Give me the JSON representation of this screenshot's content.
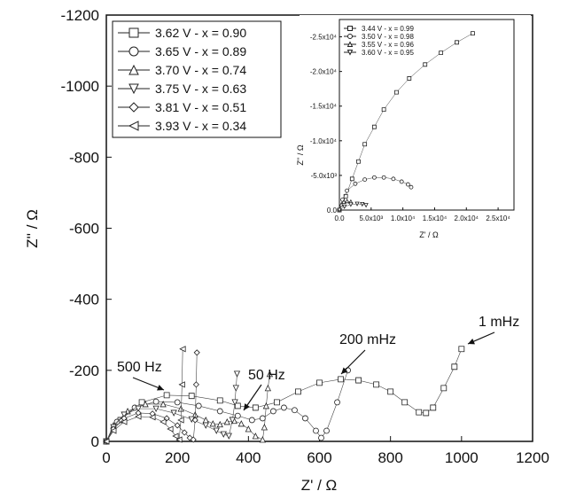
{
  "chart_data": [
    {
      "type": "scatter",
      "xlabel": "Z' / Ω",
      "ylabel": "Z'' / Ω",
      "xlim": [
        0,
        1200
      ],
      "ylim": [
        0,
        -1200
      ],
      "x_ticks": [
        "0",
        "200",
        "400",
        "600",
        "800",
        "1000",
        "1200"
      ],
      "y_ticks": [
        "0",
        "-200",
        "-400",
        "-600",
        "-800",
        "-1000",
        "-1200"
      ],
      "legend_position": "top-left",
      "series": [
        {
          "name": "3.62 V - x = 0.90",
          "marker": "square",
          "x": [
            0,
            40,
            100,
            170,
            240,
            320,
            370,
            420,
            480,
            540,
            600,
            660,
            710,
            760,
            800,
            840,
            880,
            900,
            920,
            950,
            980,
            1000
          ],
          "y": [
            0,
            -60,
            -110,
            -130,
            -128,
            -115,
            -100,
            -95,
            -110,
            -140,
            -165,
            -175,
            -172,
            -160,
            -140,
            -110,
            -82,
            -80,
            -95,
            -150,
            -210,
            -260
          ]
        },
        {
          "name": "3.65 V - x = 0.89",
          "marker": "circle",
          "x": [
            0,
            30,
            80,
            140,
            200,
            260,
            320,
            370,
            410,
            440,
            470,
            500,
            530,
            560,
            590,
            605,
            620,
            650,
            680
          ],
          "y": [
            0,
            -55,
            -95,
            -112,
            -110,
            -100,
            -85,
            -72,
            -60,
            -65,
            -85,
            -95,
            -88,
            -65,
            -30,
            -10,
            -30,
            -110,
            -200
          ]
        },
        {
          "name": "3.70 V - x = 0.74",
          "marker": "triangle-up",
          "x": [
            0,
            20,
            60,
            110,
            160,
            210,
            250,
            280,
            300,
            320,
            340,
            360,
            380,
            400,
            420,
            440,
            445,
            450,
            455,
            460
          ],
          "y": [
            0,
            -45,
            -85,
            -105,
            -105,
            -92,
            -75,
            -60,
            -50,
            -48,
            -55,
            -58,
            -50,
            -35,
            -15,
            -5,
            -40,
            -100,
            -150,
            -190
          ]
        },
        {
          "name": "3.75 V - x = 0.63",
          "marker": "triangle-down",
          "x": [
            0,
            20,
            50,
            90,
            140,
            190,
            240,
            280,
            310,
            330,
            345,
            355,
            362,
            365,
            368
          ],
          "y": [
            0,
            -40,
            -75,
            -92,
            -92,
            -80,
            -62,
            -45,
            -30,
            -20,
            -15,
            -60,
            -110,
            -150,
            -190
          ]
        },
        {
          "name": "3.81 V - x = 0.51",
          "marker": "diamond",
          "x": [
            0,
            20,
            50,
            90,
            130,
            170,
            200,
            220,
            235,
            245,
            250,
            253,
            255
          ],
          "y": [
            0,
            -35,
            -65,
            -80,
            -78,
            -65,
            -45,
            -25,
            -10,
            -5,
            -60,
            -160,
            -250
          ]
        },
        {
          "name": "3.93 V - x = 0.34",
          "marker": "triangle-left",
          "x": [
            0,
            20,
            50,
            90,
            130,
            160,
            180,
            195,
            205,
            210,
            213,
            215
          ],
          "y": [
            0,
            -30,
            -55,
            -70,
            -68,
            -55,
            -35,
            -15,
            -5,
            -60,
            -160,
            -260
          ]
        }
      ],
      "annotations": [
        {
          "text": "500 Hz",
          "x": 175,
          "y": -132
        },
        {
          "text": "50 Hz",
          "x": 375,
          "y": -105
        },
        {
          "text": "200 mHz",
          "x": 715,
          "y": -172
        },
        {
          "text": "1 mHz",
          "x": 1002,
          "y": -263
        }
      ]
    },
    {
      "type": "scatter",
      "xlabel": "Z' / Ω",
      "ylabel": "Z'' / Ω",
      "xlim": [
        0,
        27500
      ],
      "ylim": [
        0,
        -27500
      ],
      "x_ticks": [
        "0.0",
        "5.0x10³",
        "1.0x10⁴",
        "1.5x10⁴",
        "2.0x10⁴",
        "2.5x10⁴"
      ],
      "y_ticks": [
        "0.0",
        "-5.0x10³",
        "-1.0x10⁴",
        "-1.5x10⁴",
        "-2.0x10⁴",
        "-2.5x10⁴"
      ],
      "legend_position": "top-left",
      "series": [
        {
          "name": "3.44 V - x = 0.99",
          "marker": "square",
          "x": [
            0,
            1000,
            2000,
            3000,
            4000,
            5500,
            7000,
            9000,
            11000,
            13500,
            16000,
            18500,
            21000
          ],
          "y": [
            0,
            -2000,
            -4500,
            -7000,
            -9500,
            -12000,
            -14500,
            -17000,
            -19000,
            -21000,
            -22700,
            -24200,
            -25500
          ]
        },
        {
          "name": "3.50 V - x = 0.98",
          "marker": "circle",
          "x": [
            0,
            500,
            1200,
            2500,
            4000,
            5500,
            7000,
            8500,
            9800,
            10800,
            11300
          ],
          "y": [
            0,
            -1500,
            -2800,
            -3800,
            -4400,
            -4700,
            -4700,
            -4500,
            -4100,
            -3700,
            -3300
          ]
        },
        {
          "name": "3.55 V - x = 0.96",
          "marker": "triangle-up",
          "x": [
            0,
            300,
            700,
            1200,
            1800
          ],
          "y": [
            0,
            -800,
            -1200,
            -1300,
            -1200
          ]
        },
        {
          "name": "3.60 V - x = 0.95",
          "marker": "triangle-down",
          "x": [
            0,
            800,
            1800,
            2800,
            3600,
            4200
          ],
          "y": [
            0,
            -500,
            -800,
            -900,
            -850,
            -700
          ]
        }
      ]
    }
  ]
}
